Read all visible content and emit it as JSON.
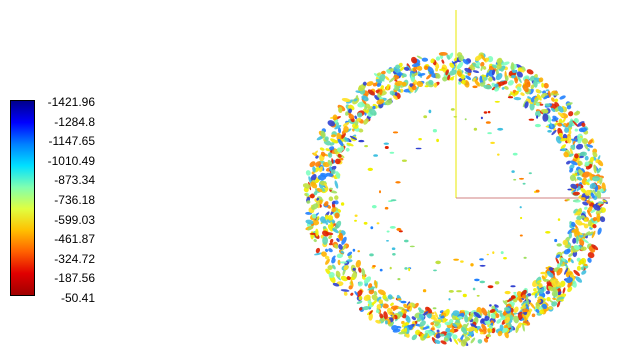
{
  "colorbar": {
    "labels": [
      "-1421.96",
      "-1284.8",
      "-1147.65",
      "-1010.49",
      "-873.34",
      "-736.18",
      "-599.03",
      "-461.87",
      "-324.72",
      "-187.56",
      "-50.41"
    ],
    "stops": [
      "#00008b",
      "#0000ff",
      "#0080ff",
      "#00e0ff",
      "#80ffb0",
      "#e0ff40",
      "#ffc000",
      "#ff6000",
      "#e00000",
      "#a00000"
    ]
  },
  "axes": {
    "y_color": "#e8e800",
    "x_color": "#d08080"
  }
}
